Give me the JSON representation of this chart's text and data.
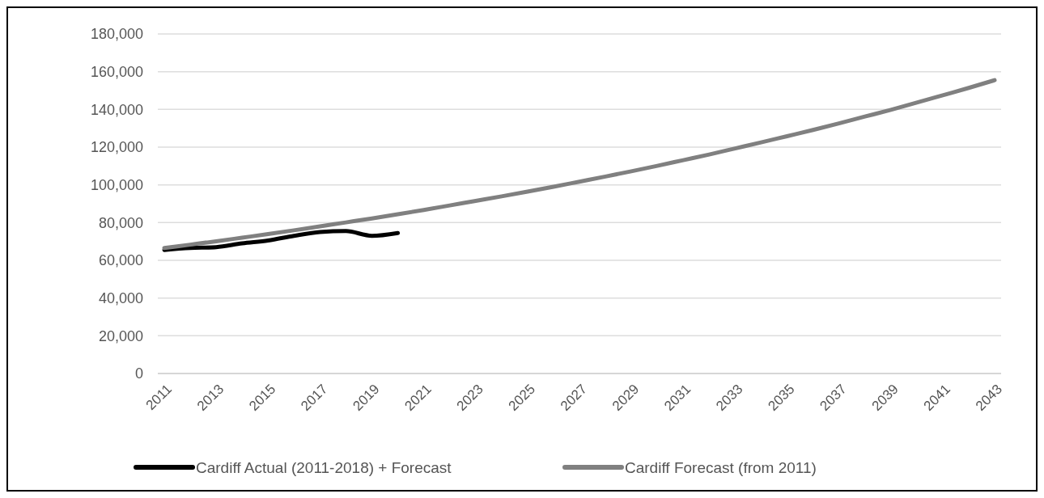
{
  "chart_data": {
    "type": "line",
    "categories": [
      "2011",
      null,
      "2013",
      null,
      "2015",
      null,
      "2017",
      null,
      "2019",
      null,
      "2021",
      null,
      "2023",
      null,
      "2025",
      null,
      "2027",
      null,
      "2029",
      null,
      "2031",
      null,
      "2033",
      null,
      "2035",
      null,
      "2037",
      null,
      "2039",
      null,
      "2041",
      null,
      "2043"
    ],
    "series": [
      {
        "name": "Cardiff Actual (2011-2018) + Forecast",
        "color": "#000000",
        "values": [
          65500,
          66500,
          67000,
          69000,
          70500,
          73000,
          75000,
          75500,
          73000,
          74500,
          null,
          null,
          null,
          null,
          null,
          null,
          null,
          null,
          null,
          null,
          null,
          null,
          null,
          null,
          null,
          null,
          null,
          null,
          null,
          null,
          null,
          null,
          null
        ]
      },
      {
        "name": "Cardiff Forecast (from 2011)",
        "color": "#808080",
        "values": [
          66500,
          68300,
          70100,
          72000,
          73900,
          75900,
          78000,
          80100,
          82200,
          84400,
          86700,
          89100,
          91500,
          93900,
          96400,
          99000,
          101700,
          104400,
          107200,
          110100,
          113100,
          116100,
          119300,
          122500,
          125800,
          129100,
          132600,
          136200,
          139800,
          143600,
          147500,
          151400,
          155500
        ]
      }
    ],
    "ylim": [
      0,
      180000
    ],
    "yticks": [
      {
        "value": 0,
        "label": "0"
      },
      {
        "value": 20000,
        "label": "20,000"
      },
      {
        "value": 40000,
        "label": "40,000"
      },
      {
        "value": 60000,
        "label": "60,000"
      },
      {
        "value": 80000,
        "label": "80,000"
      },
      {
        "value": 100000,
        "label": "100,000"
      },
      {
        "value": 120000,
        "label": "120,000"
      },
      {
        "value": 140000,
        "label": "140,000"
      },
      {
        "value": 160000,
        "label": "160,000"
      },
      {
        "value": 180000,
        "label": "180,000"
      }
    ],
    "grid": "y",
    "legend": "bottom",
    "marker": "none",
    "line_style": "solid"
  }
}
